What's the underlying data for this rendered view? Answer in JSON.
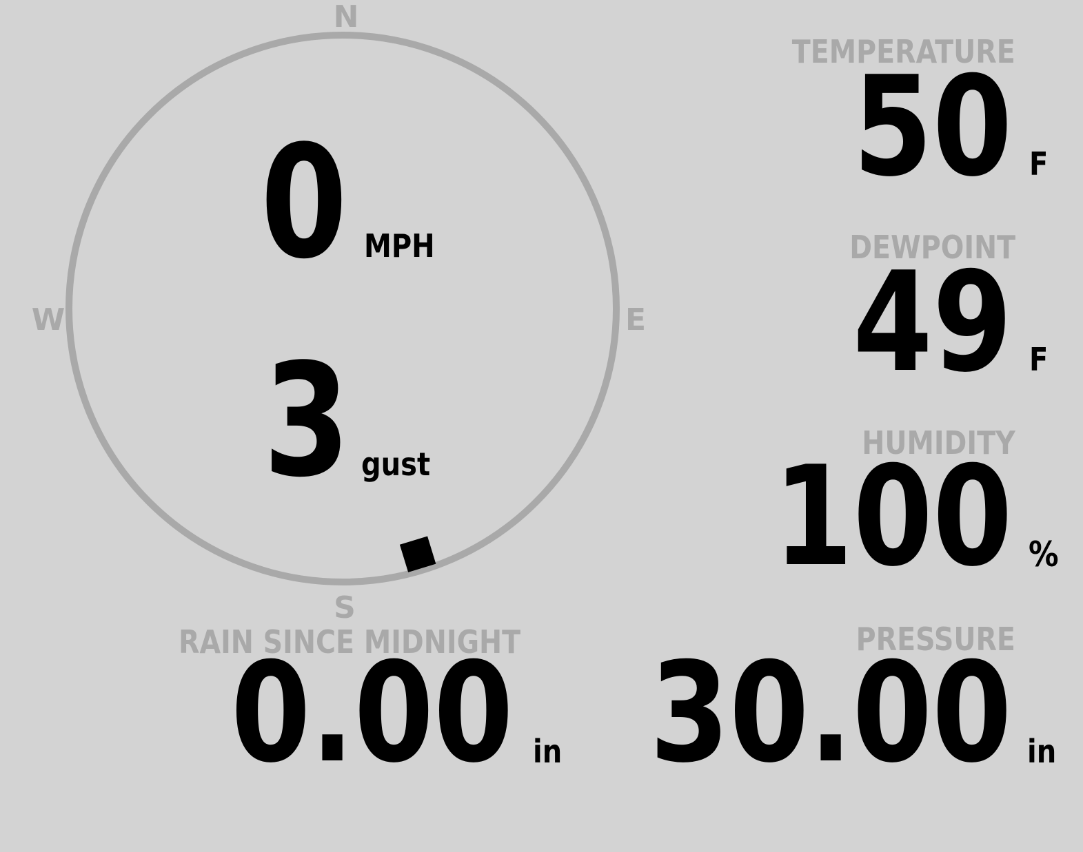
{
  "colors": {
    "background": "#d3d3d3",
    "label": "#a9a9a9",
    "value": "#000000"
  },
  "wind": {
    "compass": {
      "north": "N",
      "east": "E",
      "south": "S",
      "west": "W"
    },
    "speed": "0",
    "speed_unit": "MPH",
    "gust": "3",
    "gust_unit": "gust",
    "direction_deg": 163
  },
  "temperature": {
    "label": "TEMPERATURE",
    "value": "50",
    "unit": "F"
  },
  "dewpoint": {
    "label": "DEWPOINT",
    "value": "49",
    "unit": "F"
  },
  "humidity": {
    "label": "HUMIDITY",
    "value": "100",
    "unit": "%"
  },
  "pressure": {
    "label": "PRESSURE",
    "value": "30.00",
    "unit": "in"
  },
  "rain": {
    "label": "RAIN SINCE MIDNIGHT",
    "value": "0.00",
    "unit": "in"
  }
}
